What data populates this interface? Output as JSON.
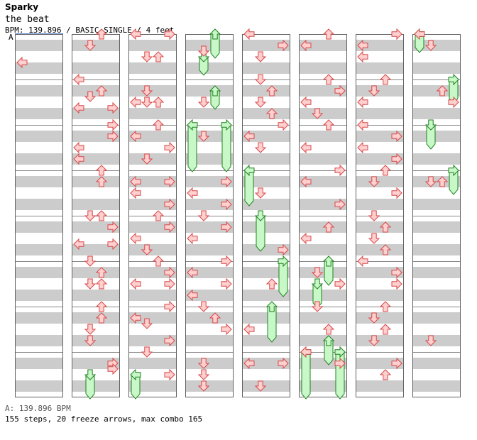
{
  "header": {
    "artist": "Sparky",
    "title": "the beat",
    "meta": "BPM: 139.896 / BASIC SINGLE / 4 feet",
    "marker": "A"
  },
  "footer": {
    "bpm_line": "A: 139.896 BPM",
    "stats_line": "155 steps, 20 freeze arrows, max combo 165"
  },
  "colors": {
    "stripe": "#cccccc",
    "arrow_fill": "#ffd0d0",
    "arrow_stroke": "#d84848",
    "freeze_fill": "#c8f8c8",
    "freeze_stroke": "#208020",
    "column_border": "#606060"
  },
  "chart_data": {
    "type": "step-chart",
    "lanes": [
      "left",
      "down",
      "up",
      "right"
    ],
    "measures_per_column": 8,
    "rows_per_measure": 8,
    "notes": [
      {
        "measure": 0,
        "row": 5,
        "lane": "left"
      },
      {
        "measure": 8,
        "row": 0,
        "lane": "up"
      },
      {
        "measure": 8,
        "row": 2,
        "lane": "down"
      },
      {
        "measure": 9,
        "row": 0,
        "lane": "left"
      },
      {
        "measure": 9,
        "row": 2,
        "lane": "up"
      },
      {
        "measure": 9,
        "row": 3,
        "lane": "down"
      },
      {
        "measure": 9,
        "row": 5,
        "lane": "left"
      },
      {
        "measure": 9,
        "row": 5,
        "lane": "right"
      },
      {
        "measure": 10,
        "row": 0,
        "lane": "right"
      },
      {
        "measure": 10,
        "row": 2,
        "lane": "right"
      },
      {
        "measure": 10,
        "row": 4,
        "lane": "left"
      },
      {
        "measure": 10,
        "row": 6,
        "lane": "left"
      },
      {
        "measure": 11,
        "row": 0,
        "lane": "up"
      },
      {
        "measure": 11,
        "row": 2,
        "lane": "up"
      },
      {
        "measure": 12,
        "row": 0,
        "lane": "down"
      },
      {
        "measure": 12,
        "row": 0,
        "lane": "up"
      },
      {
        "measure": 12,
        "row": 2,
        "lane": "right"
      },
      {
        "measure": 12,
        "row": 5,
        "lane": "left"
      },
      {
        "measure": 12,
        "row": 5,
        "lane": "right"
      },
      {
        "measure": 13,
        "row": 0,
        "lane": "down"
      },
      {
        "measure": 13,
        "row": 2,
        "lane": "up"
      },
      {
        "measure": 13,
        "row": 4,
        "lane": "down"
      },
      {
        "measure": 13,
        "row": 4,
        "lane": "up"
      },
      {
        "measure": 14,
        "row": 0,
        "lane": "up"
      },
      {
        "measure": 14,
        "row": 2,
        "lane": "up"
      },
      {
        "measure": 14,
        "row": 4,
        "lane": "down"
      },
      {
        "measure": 14,
        "row": 6,
        "lane": "down"
      },
      {
        "measure": 15,
        "row": 2,
        "lane": "right"
      },
      {
        "measure": 15,
        "row": 3,
        "lane": "right"
      },
      {
        "measure": 16,
        "row": 0,
        "lane": "left"
      },
      {
        "measure": 16,
        "row": 0,
        "lane": "right"
      },
      {
        "measure": 16,
        "row": 4,
        "lane": "down"
      },
      {
        "measure": 16,
        "row": 4,
        "lane": "up"
      },
      {
        "measure": 17,
        "row": 2,
        "lane": "down"
      },
      {
        "measure": 17,
        "row": 4,
        "lane": "left"
      },
      {
        "measure": 17,
        "row": 4,
        "lane": "down"
      },
      {
        "measure": 17,
        "row": 4,
        "lane": "up"
      },
      {
        "measure": 18,
        "row": 0,
        "lane": "up"
      },
      {
        "measure": 18,
        "row": 2,
        "lane": "left"
      },
      {
        "measure": 18,
        "row": 4,
        "lane": "right"
      },
      {
        "measure": 18,
        "row": 6,
        "lane": "down"
      },
      {
        "measure": 19,
        "row": 2,
        "lane": "left"
      },
      {
        "measure": 19,
        "row": 2,
        "lane": "right"
      },
      {
        "measure": 19,
        "row": 4,
        "lane": "left"
      },
      {
        "measure": 19,
        "row": 6,
        "lane": "right"
      },
      {
        "measure": 20,
        "row": 0,
        "lane": "up"
      },
      {
        "measure": 20,
        "row": 2,
        "lane": "right"
      },
      {
        "measure": 20,
        "row": 4,
        "lane": "left"
      },
      {
        "measure": 20,
        "row": 6,
        "lane": "down"
      },
      {
        "measure": 21,
        "row": 0,
        "lane": "up"
      },
      {
        "measure": 21,
        "row": 2,
        "lane": "right"
      },
      {
        "measure": 21,
        "row": 4,
        "lane": "left"
      },
      {
        "measure": 21,
        "row": 4,
        "lane": "right"
      },
      {
        "measure": 22,
        "row": 0,
        "lane": "right"
      },
      {
        "measure": 22,
        "row": 2,
        "lane": "left"
      },
      {
        "measure": 22,
        "row": 3,
        "lane": "down"
      },
      {
        "measure": 22,
        "row": 6,
        "lane": "right"
      },
      {
        "measure": 23,
        "row": 0,
        "lane": "down"
      },
      {
        "measure": 23,
        "row": 4,
        "lane": "right"
      },
      {
        "measure": 24,
        "row": 3,
        "lane": "down"
      },
      {
        "measure": 25,
        "row": 4,
        "lane": "down"
      },
      {
        "measure": 26,
        "row": 2,
        "lane": "down"
      },
      {
        "measure": 27,
        "row": 2,
        "lane": "right"
      },
      {
        "measure": 27,
        "row": 4,
        "lane": "left"
      },
      {
        "measure": 27,
        "row": 6,
        "lane": "right"
      },
      {
        "measure": 28,
        "row": 0,
        "lane": "down"
      },
      {
        "measure": 28,
        "row": 2,
        "lane": "right"
      },
      {
        "measure": 28,
        "row": 4,
        "lane": "left"
      },
      {
        "measure": 29,
        "row": 0,
        "lane": "right"
      },
      {
        "measure": 29,
        "row": 2,
        "lane": "left"
      },
      {
        "measure": 29,
        "row": 4,
        "lane": "right"
      },
      {
        "measure": 29,
        "row": 6,
        "lane": "left"
      },
      {
        "measure": 30,
        "row": 0,
        "lane": "down"
      },
      {
        "measure": 30,
        "row": 2,
        "lane": "up"
      },
      {
        "measure": 30,
        "row": 4,
        "lane": "right"
      },
      {
        "measure": 31,
        "row": 2,
        "lane": "down"
      },
      {
        "measure": 31,
        "row": 4,
        "lane": "down"
      },
      {
        "measure": 31,
        "row": 6,
        "lane": "down"
      },
      {
        "measure": 32,
        "row": 0,
        "lane": "left"
      },
      {
        "measure": 32,
        "row": 2,
        "lane": "right"
      },
      {
        "measure": 32,
        "row": 4,
        "lane": "down"
      },
      {
        "measure": 33,
        "row": 0,
        "lane": "down"
      },
      {
        "measure": 33,
        "row": 2,
        "lane": "up"
      },
      {
        "measure": 33,
        "row": 4,
        "lane": "down"
      },
      {
        "measure": 33,
        "row": 6,
        "lane": "up"
      },
      {
        "measure": 34,
        "row": 0,
        "lane": "right"
      },
      {
        "measure": 34,
        "row": 2,
        "lane": "left"
      },
      {
        "measure": 34,
        "row": 4,
        "lane": "down"
      },
      {
        "measure": 35,
        "row": 4,
        "lane": "down"
      },
      {
        "measure": 36,
        "row": 6,
        "lane": "right"
      },
      {
        "measure": 37,
        "row": 4,
        "lane": "up"
      },
      {
        "measure": 38,
        "row": 4,
        "lane": "left"
      },
      {
        "measure": 39,
        "row": 2,
        "lane": "left"
      },
      {
        "measure": 39,
        "row": 2,
        "lane": "right"
      },
      {
        "measure": 39,
        "row": 6,
        "lane": "down"
      },
      {
        "measure": 40,
        "row": 0,
        "lane": "up"
      },
      {
        "measure": 40,
        "row": 2,
        "lane": "left"
      },
      {
        "measure": 41,
        "row": 0,
        "lane": "up"
      },
      {
        "measure": 41,
        "row": 2,
        "lane": "right"
      },
      {
        "measure": 41,
        "row": 4,
        "lane": "left"
      },
      {
        "measure": 41,
        "row": 6,
        "lane": "down"
      },
      {
        "measure": 42,
        "row": 0,
        "lane": "up"
      },
      {
        "measure": 42,
        "row": 4,
        "lane": "left"
      },
      {
        "measure": 43,
        "row": 0,
        "lane": "right"
      },
      {
        "measure": 43,
        "row": 2,
        "lane": "left"
      },
      {
        "measure": 43,
        "row": 6,
        "lane": "right"
      },
      {
        "measure": 44,
        "row": 2,
        "lane": "up"
      },
      {
        "measure": 44,
        "row": 4,
        "lane": "left"
      },
      {
        "measure": 45,
        "row": 2,
        "lane": "down"
      },
      {
        "measure": 45,
        "row": 4,
        "lane": "right"
      },
      {
        "measure": 46,
        "row": 0,
        "lane": "down"
      },
      {
        "measure": 46,
        "row": 4,
        "lane": "up"
      },
      {
        "measure": 47,
        "row": 0,
        "lane": "left"
      },
      {
        "measure": 47,
        "row": 2,
        "lane": "right"
      },
      {
        "measure": 48,
        "row": 0,
        "lane": "right"
      },
      {
        "measure": 48,
        "row": 2,
        "lane": "left"
      },
      {
        "measure": 48,
        "row": 4,
        "lane": "left"
      },
      {
        "measure": 49,
        "row": 0,
        "lane": "up"
      },
      {
        "measure": 49,
        "row": 2,
        "lane": "down"
      },
      {
        "measure": 49,
        "row": 4,
        "lane": "left"
      },
      {
        "measure": 50,
        "row": 0,
        "lane": "left"
      },
      {
        "measure": 50,
        "row": 2,
        "lane": "right"
      },
      {
        "measure": 50,
        "row": 4,
        "lane": "left"
      },
      {
        "measure": 50,
        "row": 6,
        "lane": "right"
      },
      {
        "measure": 51,
        "row": 0,
        "lane": "up"
      },
      {
        "measure": 51,
        "row": 2,
        "lane": "down"
      },
      {
        "measure": 51,
        "row": 4,
        "lane": "right"
      },
      {
        "measure": 52,
        "row": 0,
        "lane": "down"
      },
      {
        "measure": 52,
        "row": 2,
        "lane": "up"
      },
      {
        "measure": 52,
        "row": 4,
        "lane": "down"
      },
      {
        "measure": 52,
        "row": 6,
        "lane": "up"
      },
      {
        "measure": 53,
        "row": 0,
        "lane": "left"
      },
      {
        "measure": 53,
        "row": 2,
        "lane": "right"
      },
      {
        "measure": 53,
        "row": 4,
        "lane": "right"
      },
      {
        "measure": 54,
        "row": 0,
        "lane": "up"
      },
      {
        "measure": 54,
        "row": 2,
        "lane": "down"
      },
      {
        "measure": 54,
        "row": 4,
        "lane": "up"
      },
      {
        "measure": 54,
        "row": 6,
        "lane": "down"
      },
      {
        "measure": 55,
        "row": 2,
        "lane": "right"
      },
      {
        "measure": 55,
        "row": 4,
        "lane": "up"
      },
      {
        "measure": 56,
        "row": 0,
        "lane": "left"
      },
      {
        "measure": 56,
        "row": 2,
        "lane": "down"
      },
      {
        "measure": 57,
        "row": 2,
        "lane": "up"
      },
      {
        "measure": 57,
        "row": 4,
        "lane": "right"
      },
      {
        "measure": 59,
        "row": 2,
        "lane": "down"
      },
      {
        "measure": 59,
        "row": 2,
        "lane": "up"
      },
      {
        "measure": 62,
        "row": 6,
        "lane": "down"
      }
    ],
    "freezes": [
      {
        "measure": 15,
        "row": 4,
        "lane": "down",
        "length": 4
      },
      {
        "measure": 23,
        "row": 4,
        "lane": "left",
        "length": 4
      },
      {
        "measure": 24,
        "row": 0,
        "lane": "up",
        "length": 4
      },
      {
        "measure": 24,
        "row": 4,
        "lane": "down",
        "length": 3
      },
      {
        "measure": 25,
        "row": 2,
        "lane": "up",
        "length": 3
      },
      {
        "measure": 26,
        "row": 0,
        "lane": "left",
        "length": 8
      },
      {
        "measure": 26,
        "row": 0,
        "lane": "right",
        "length": 8
      },
      {
        "measure": 35,
        "row": 0,
        "lane": "left",
        "length": 6
      },
      {
        "measure": 36,
        "row": 0,
        "lane": "down",
        "length": 6
      },
      {
        "measure": 37,
        "row": 0,
        "lane": "right",
        "length": 6
      },
      {
        "measure": 38,
        "row": 0,
        "lane": "up",
        "length": 6
      },
      {
        "measure": 45,
        "row": 0,
        "lane": "up",
        "length": 4
      },
      {
        "measure": 45,
        "row": 4,
        "lane": "down",
        "length": 4
      },
      {
        "measure": 46,
        "row": 6,
        "lane": "up",
        "length": 4
      },
      {
        "measure": 47,
        "row": 0,
        "lane": "left",
        "length": 8
      },
      {
        "measure": 47,
        "row": 0,
        "lane": "right",
        "length": 8
      },
      {
        "measure": 56,
        "row": 0,
        "lane": "left",
        "length": 3
      },
      {
        "measure": 57,
        "row": 0,
        "lane": "right",
        "length": 4
      },
      {
        "measure": 58,
        "row": 0,
        "lane": "down",
        "length": 4
      },
      {
        "measure": 59,
        "row": 0,
        "lane": "right",
        "length": 4
      }
    ]
  }
}
